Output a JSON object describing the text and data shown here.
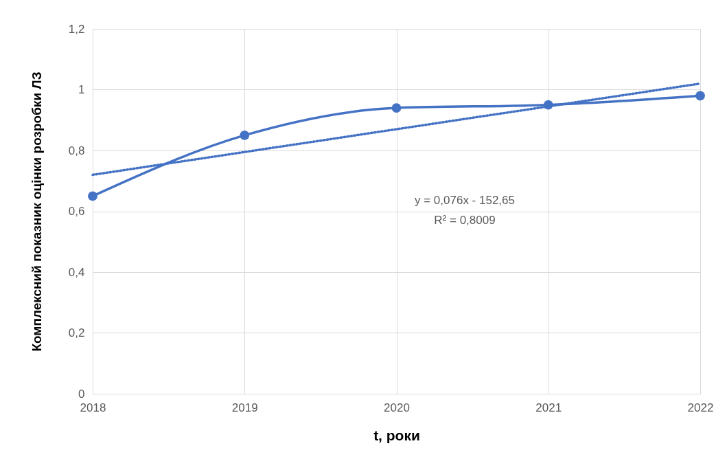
{
  "chart_data": {
    "type": "line",
    "xlabel": "t, роки",
    "ylabel": "Комплексний показник оцінки розробки ЛЗ",
    "x": [
      2018,
      2019,
      2020,
      2021,
      2022
    ],
    "series": [
      {
        "color": "#4472c4",
        "values": [
          0.65,
          0.85,
          0.94,
          0.95,
          0.98
        ]
      },
      {
        "type": "line",
        "color": "#4472c4",
        "x": [
          2018,
          2022
        ],
        "values": [
          0.72,
          1.02
        ],
        "line_style": "dotted",
        "marker": "none"
      }
    ],
    "xlim": [
      2018,
      2022
    ],
    "xticks": [
      2018,
      2019,
      2020,
      2021,
      2022
    ],
    "ylim": [
      0,
      1.2
    ],
    "yticks": [
      0,
      {
        "value": 0.2,
        "label": "0,2"
      },
      {
        "value": 0.4,
        "label": "0,4"
      },
      {
        "value": 0.6,
        "label": "0,6"
      },
      {
        "value": 0.8,
        "label": "0,8"
      },
      1,
      {
        "value": 1.2,
        "label": "1,2"
      }
    ],
    "grid": true,
    "marker": "circle",
    "line_style": "solid",
    "annotations": [
      "y = 0,076x - 152,65",
      "R² = 0,8009"
    ]
  }
}
